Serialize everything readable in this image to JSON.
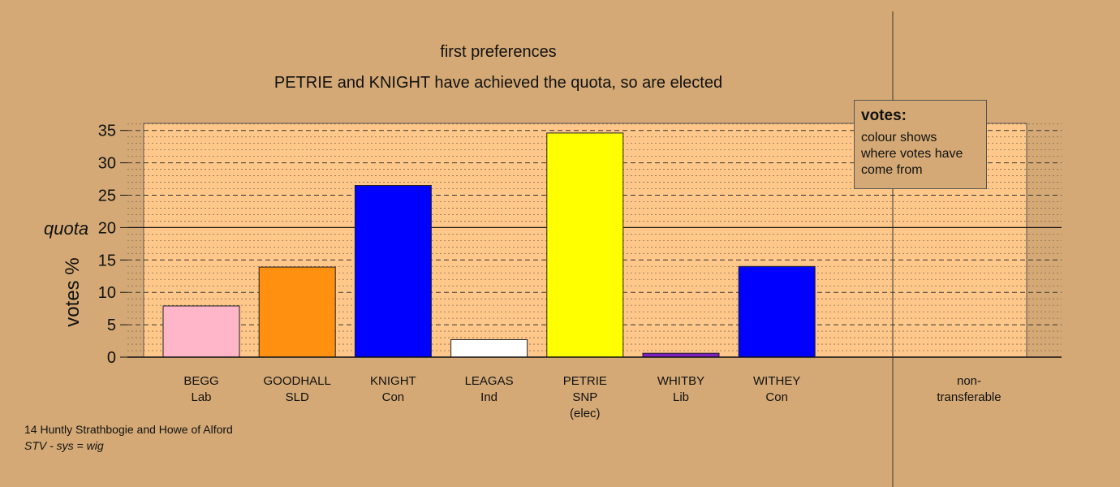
{
  "chart_data": {
    "type": "bar",
    "title": "first preferences",
    "subtitle": "PETRIE and KNIGHT have achieved the quota, so are elected",
    "ylabel": "votes %",
    "ylim": [
      0,
      35
    ],
    "yticks": [
      0,
      5,
      10,
      15,
      20,
      25,
      30,
      35
    ],
    "quota": {
      "label": "quota",
      "value": 20
    },
    "grid": "dashed major every 5, dotted minor every 1",
    "categories": [
      {
        "name": "BEGG",
        "party": "Lab",
        "note": "",
        "value": 7.9,
        "color": "#ffb6c8"
      },
      {
        "name": "GOODHALL",
        "party": "SLD",
        "note": "",
        "value": 13.9,
        "color": "#ff9010"
      },
      {
        "name": "KNIGHT",
        "party": "Con",
        "note": "",
        "value": 26.5,
        "color": "#0000ff"
      },
      {
        "name": "LEAGAS",
        "party": "Ind",
        "note": "",
        "value": 2.7,
        "color": "#ffffff"
      },
      {
        "name": "PETRIE",
        "party": "SNP",
        "note": "(elec)",
        "value": 34.6,
        "color": "#ffff00"
      },
      {
        "name": "WHITBY",
        "party": "Lib",
        "note": "",
        "value": 0.6,
        "color": "#8020c0"
      },
      {
        "name": "WITHEY",
        "party": "Con",
        "note": "",
        "value": 14.0,
        "color": "#0000ff"
      }
    ],
    "nontransferable": {
      "line1": "non-",
      "line2": "transferable",
      "value": 0
    },
    "legend": {
      "title": "votes:",
      "text": "colour shows where votes have come from",
      "placement": "top-right"
    }
  },
  "footer": {
    "line1": "14 Huntly Strathbogie and Howe of Alford",
    "line2": "STV - sys = wig"
  },
  "colors": {
    "background": "#d4a975",
    "plot_area": "#ffc88a"
  }
}
